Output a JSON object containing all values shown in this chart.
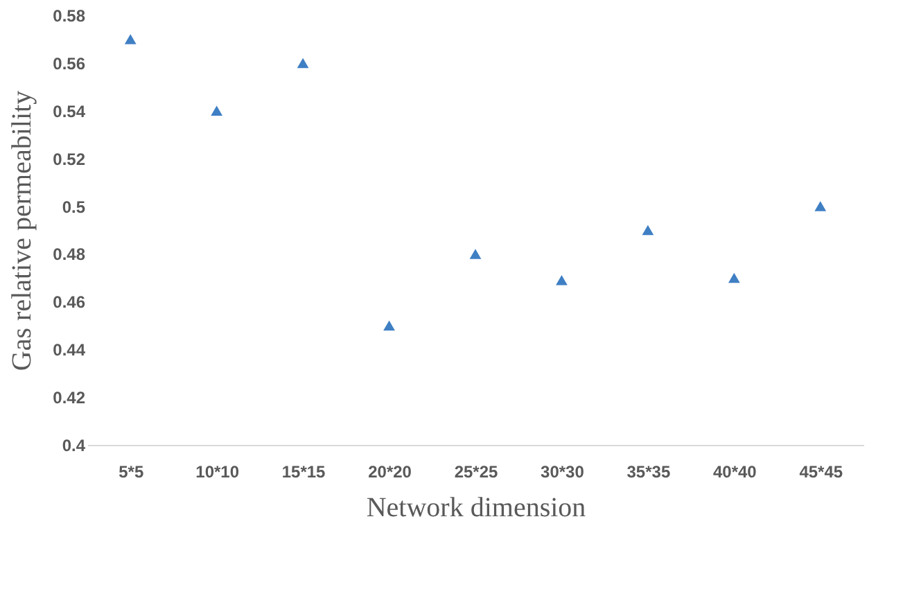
{
  "chart_data": {
    "type": "scatter",
    "xlabel": "Network dimension",
    "ylabel": "Gas relative permeability",
    "categories": [
      "5*5",
      "10*10",
      "15*15",
      "20*20",
      "25*25",
      "30*30",
      "35*35",
      "40*40",
      "45*45"
    ],
    "series": [
      {
        "color": "#3f7fc4",
        "values": [
          0.57,
          0.54,
          0.56,
          0.45,
          0.48,
          0.469,
          0.49,
          0.47,
          0.5
        ]
      }
    ],
    "ylim": [
      0.4,
      0.58
    ],
    "yticks": [
      {
        "value": 0.4,
        "label": "0.4"
      },
      0.42,
      0.44,
      0.46,
      0.48,
      {
        "value": 0.5,
        "label": "0.5"
      },
      0.52,
      0.54,
      0.56,
      0.58
    ],
    "marker": "triangle",
    "grid": false,
    "legend": false
  }
}
